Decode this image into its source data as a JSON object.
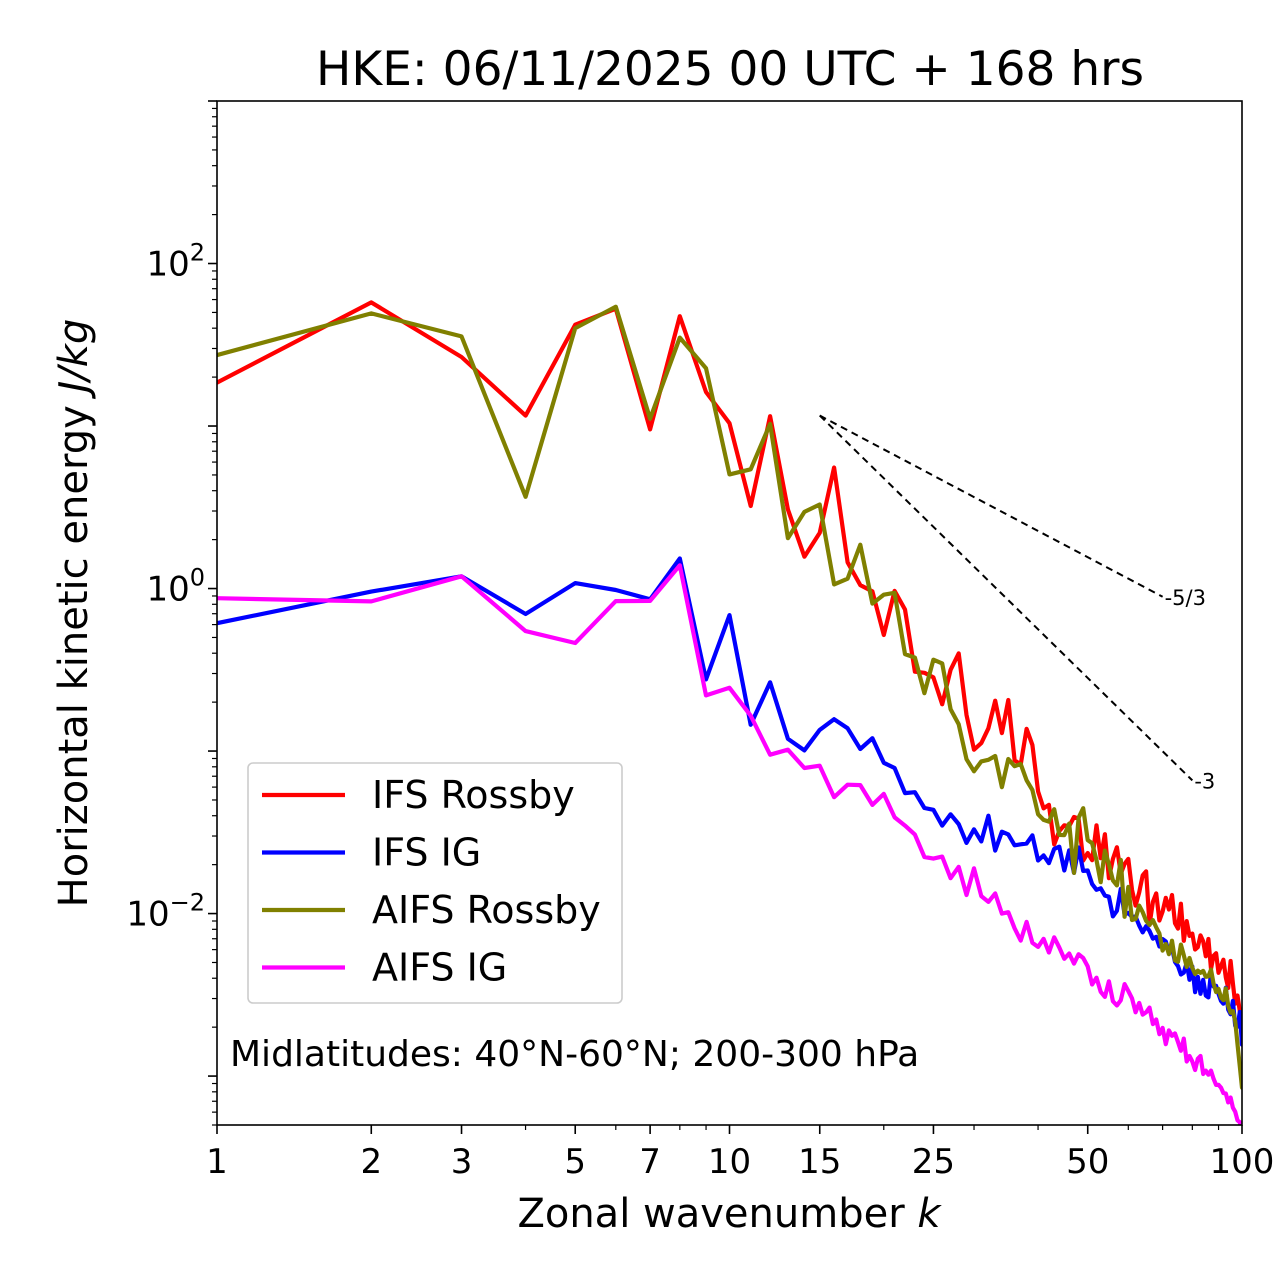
{
  "chart_data": {
    "type": "line",
    "title": "HKE: 06/11/2025 00 UTC + 168 hrs",
    "xlabel_text": "Zonal wavenumber ",
    "xlabel_var": "k",
    "ylabel_text": "Horizontal kinetic energy ",
    "ylabel_units": "J/kg",
    "xscale": "log",
    "yscale": "log",
    "xlim": [
      1,
      100
    ],
    "ylim": [
      0.0005,
      1000
    ],
    "x_ticks": [
      1,
      2,
      3,
      5,
      7,
      10,
      15,
      25,
      50,
      100
    ],
    "x_tick_labels": [
      "1",
      "2",
      "3",
      "5",
      "7",
      "10",
      "15",
      "25",
      "50",
      "100"
    ],
    "y_ticks": [
      {
        "value": 100,
        "base": "10",
        "exp": "2"
      },
      {
        "value": 1,
        "base": "10",
        "exp": "0"
      },
      {
        "value": 0.01,
        "base": "10",
        "exp": "−2"
      }
    ],
    "annotation": "Midlatitudes: 40°N-60°N; 200-300 hPa",
    "legend_position": "lower-left",
    "reference_lines": [
      {
        "label": "-5/3",
        "x": [
          15,
          70
        ],
        "y": [
          11.6,
          0.89
        ],
        "dashed": true
      },
      {
        "label": "-3",
        "x": [
          15,
          80
        ],
        "y": [
          11.6,
          0.066
        ],
        "dashed": true
      }
    ],
    "series": [
      {
        "name": "IFS Rossby",
        "color": "#ff0000",
        "values": [
          18.5,
          57.6,
          26.6,
          11.6,
          42.0,
          52.7,
          9.53,
          47.4,
          16.2,
          10.4,
          3.22,
          11.5,
          3.07,
          1.57,
          2.2,
          5.56,
          1.45,
          1.05,
          0.96,
          0.518,
          0.967,
          0.743,
          0.308,
          0.303,
          0.284,
          0.194,
          0.316,
          0.399,
          0.167,
          0.102,
          0.112,
          0.138,
          0.204,
          0.129,
          0.206,
          0.0878,
          0.0825,
          0.137,
          0.109,
          0.0564,
          0.0444,
          0.0467,
          0.0266,
          0.0322,
          0.0349,
          0.0345,
          0.0393,
          0.0384,
          0.0212,
          0.0236,
          0.0213,
          0.0349,
          0.0219,
          0.0308,
          0.0165,
          0.0217,
          0.0256,
          0.0176,
          0.0202,
          0.0217,
          0.014,
          0.0112,
          0.0135,
          0.0172,
          0.0182,
          0.0085,
          0.0118,
          0.0133,
          0.00906,
          0.0103,
          0.0125,
          0.0106,
          0.013,
          0.00872,
          0.00808,
          0.0115,
          0.0068,
          0.00899,
          0.00729,
          0.00753,
          0.00601,
          0.00621,
          0.00734,
          0.00674,
          0.00546,
          0.00697,
          0.00457,
          0.0055,
          0.0057,
          0.00432,
          0.00476,
          0.0052,
          0.00405,
          0.00349,
          0.00511,
          0.00372,
          0.00279,
          0.00313,
          0.00251,
          0.00192
        ]
      },
      {
        "name": "IFS IG",
        "color": "#0000ff",
        "values": [
          0.612,
          0.957,
          1.19,
          0.697,
          1.08,
          0.979,
          0.858,
          1.53,
          0.276,
          0.686,
          0.145,
          0.265,
          0.119,
          0.101,
          0.135,
          0.157,
          0.138,
          0.103,
          0.12,
          0.0847,
          0.0787,
          0.0551,
          0.0558,
          0.0446,
          0.0435,
          0.0348,
          0.0408,
          0.0355,
          0.0272,
          0.033,
          0.0278,
          0.04,
          0.0244,
          0.0319,
          0.0307,
          0.0263,
          0.0267,
          0.027,
          0.0303,
          0.0212,
          0.0228,
          0.0204,
          0.025,
          0.0258,
          0.0184,
          0.0245,
          0.0178,
          0.0255,
          0.0183,
          0.0184,
          0.0152,
          0.014,
          0.0143,
          0.0129,
          0.0127,
          0.00961,
          0.0104,
          0.0142,
          0.00985,
          0.0101,
          0.00954,
          0.00958,
          0.00845,
          0.00766,
          0.00836,
          0.00782,
          0.007,
          0.00719,
          0.00627,
          0.00696,
          0.00674,
          0.00573,
          0.00617,
          0.00504,
          0.00475,
          0.00422,
          0.00433,
          0.00497,
          0.00391,
          0.00473,
          0.00328,
          0.00409,
          0.00321,
          0.00391,
          0.00313,
          0.00305,
          0.00432,
          0.00356,
          0.00359,
          0.00321,
          0.0029,
          0.00279,
          0.0035,
          0.00256,
          0.0024,
          0.0029,
          0.00204,
          0.00201,
          0.00248,
          0.00156
        ]
      },
      {
        "name": "AIFS Rossby",
        "color": "#808000",
        "values": [
          27.3,
          49.3,
          35.6,
          3.67,
          40.0,
          54.2,
          11.1,
          35.0,
          22.7,
          5.04,
          5.42,
          10.3,
          2.04,
          2.96,
          3.29,
          1.06,
          1.15,
          1.86,
          0.808,
          0.917,
          0.942,
          0.395,
          0.376,
          0.227,
          0.365,
          0.346,
          0.181,
          0.146,
          0.0891,
          0.0751,
          0.0864,
          0.0884,
          0.0932,
          0.0599,
          0.0894,
          0.0807,
          0.0832,
          0.0661,
          0.0576,
          0.0408,
          0.0377,
          0.0368,
          0.0439,
          0.0305,
          0.0304,
          0.0358,
          0.0178,
          0.0389,
          0.0445,
          0.0283,
          0.0271,
          0.0213,
          0.0156,
          0.0244,
          0.0201,
          0.016,
          0.0149,
          0.0214,
          0.00955,
          0.0146,
          0.00913,
          0.00926,
          0.0112,
          0.0102,
          0.00902,
          0.00852,
          0.00911,
          0.00823,
          0.00754,
          0.00592,
          0.0065,
          0.00562,
          0.00681,
          0.00514,
          0.00505,
          0.00644,
          0.00554,
          0.0047,
          0.00533,
          0.00463,
          0.00425,
          0.00445,
          0.00432,
          0.00444,
          0.00408,
          0.00411,
          0.00452,
          0.00372,
          0.00329,
          0.00344,
          0.00304,
          0.00293,
          0.00347,
          0.00271,
          0.00245,
          0.00251,
          0.00218,
          0.00157,
          0.00115,
          0.000848
        ]
      },
      {
        "name": "AIFS IG",
        "color": "#ff00ff",
        "values": [
          0.872,
          0.833,
          1.19,
          0.547,
          0.462,
          0.837,
          0.839,
          1.39,
          0.22,
          0.245,
          0.165,
          0.095,
          0.102,
          0.0787,
          0.0813,
          0.052,
          0.0621,
          0.0617,
          0.0466,
          0.0545,
          0.0391,
          0.0348,
          0.0306,
          0.0223,
          0.0218,
          0.0224,
          0.0165,
          0.0194,
          0.013,
          0.019,
          0.0128,
          0.0118,
          0.0133,
          0.01,
          0.0102,
          0.00812,
          0.00682,
          0.00888,
          0.00661,
          0.00624,
          0.00699,
          0.00576,
          0.00714,
          0.00618,
          0.00527,
          0.00568,
          0.00492,
          0.00562,
          0.00533,
          0.00473,
          0.00366,
          0.00403,
          0.0033,
          0.00307,
          0.00383,
          0.00289,
          0.00272,
          0.00293,
          0.00368,
          0.00334,
          0.00301,
          0.00247,
          0.00282,
          0.00239,
          0.00247,
          0.00264,
          0.00209,
          0.00223,
          0.00181,
          0.00198,
          0.00157,
          0.00191,
          0.00177,
          0.00183,
          0.00162,
          0.00143,
          0.0017,
          0.00123,
          0.00133,
          0.00123,
          0.00109,
          0.00128,
          0.00133,
          0.00103,
          0.00108,
          0.00102,
          0.00108,
          0.000965,
          0.000883,
          0.000884,
          0.000849,
          0.000786,
          0.000782,
          0.000689,
          0.000738,
          0.000639,
          0.000604,
          0.000534,
          0.00052,
          0.000453
        ]
      }
    ]
  }
}
